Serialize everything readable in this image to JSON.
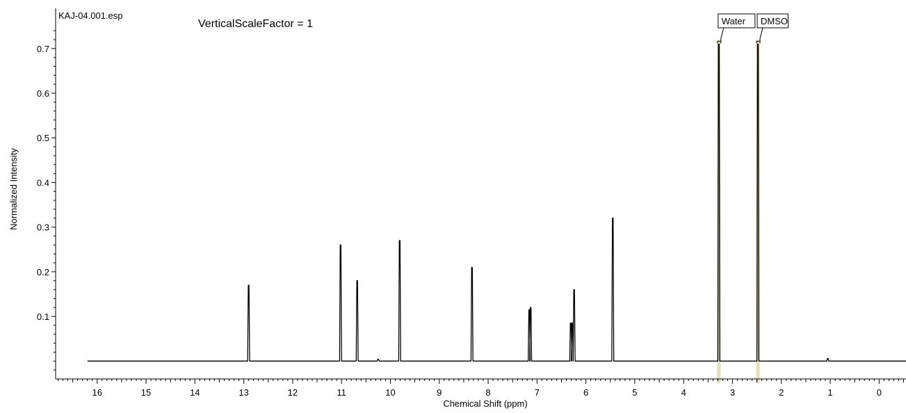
{
  "chart_data": {
    "type": "line",
    "file_label": "KAJ-04.001.esp",
    "header_text": "VerticalScaleFactor = 1",
    "xlabel": "Chemical Shift (ppm)",
    "ylabel": "Normalized Intensity",
    "xlim": [
      16.85,
      -0.55
    ],
    "ylim": [
      -0.04,
      0.79
    ],
    "x_ticks": [
      16,
      15,
      14,
      13,
      12,
      11,
      10,
      9,
      8,
      7,
      6,
      5,
      4,
      3,
      2,
      1,
      0
    ],
    "y_ticks": [
      0.1,
      0.2,
      0.3,
      0.4,
      0.5,
      0.6,
      0.7
    ],
    "x_tick_labels": [
      "16",
      "15",
      "14",
      "13",
      "12",
      "11",
      "10",
      "9",
      "8",
      "7",
      "6",
      "5",
      "4",
      "3",
      "2",
      "1",
      "0"
    ],
    "y_tick_labels": [
      "0.1",
      "0.2",
      "0.3",
      "0.4",
      "0.5",
      "0.6",
      "0.7"
    ],
    "baseline_range": [
      16.2,
      -0.55
    ],
    "grid": false,
    "series": [
      {
        "peaks": [
          {
            "ppm": 12.9,
            "intensity": 0.17
          },
          {
            "ppm": 11.02,
            "intensity": 0.26
          },
          {
            "ppm": 10.68,
            "intensity": 0.18
          },
          {
            "ppm": 10.25,
            "intensity": 0.004
          },
          {
            "ppm": 9.81,
            "intensity": 0.27
          },
          {
            "ppm": 8.33,
            "intensity": 0.21
          },
          {
            "ppm": 7.16,
            "intensity": 0.115
          },
          {
            "ppm": 7.13,
            "intensity": 0.12
          },
          {
            "ppm": 6.31,
            "intensity": 0.085
          },
          {
            "ppm": 6.28,
            "intensity": 0.085
          },
          {
            "ppm": 6.24,
            "intensity": 0.16
          },
          {
            "ppm": 5.45,
            "intensity": 0.32
          },
          {
            "ppm": 3.28,
            "intensity": 0.71
          },
          {
            "ppm": 2.48,
            "intensity": 0.71
          },
          {
            "ppm": 1.05,
            "intensity": 0.006
          }
        ]
      }
    ],
    "annotations": [
      {
        "text": "Water",
        "ppm": 3.28,
        "highlight_color": "#d9d6a8"
      },
      {
        "text": "DMSO",
        "ppm": 2.48,
        "highlight_color": "#d9d6a8"
      }
    ],
    "colors": {
      "spectrum": "#000000",
      "peak_highlight": "#d9d6a8"
    }
  }
}
